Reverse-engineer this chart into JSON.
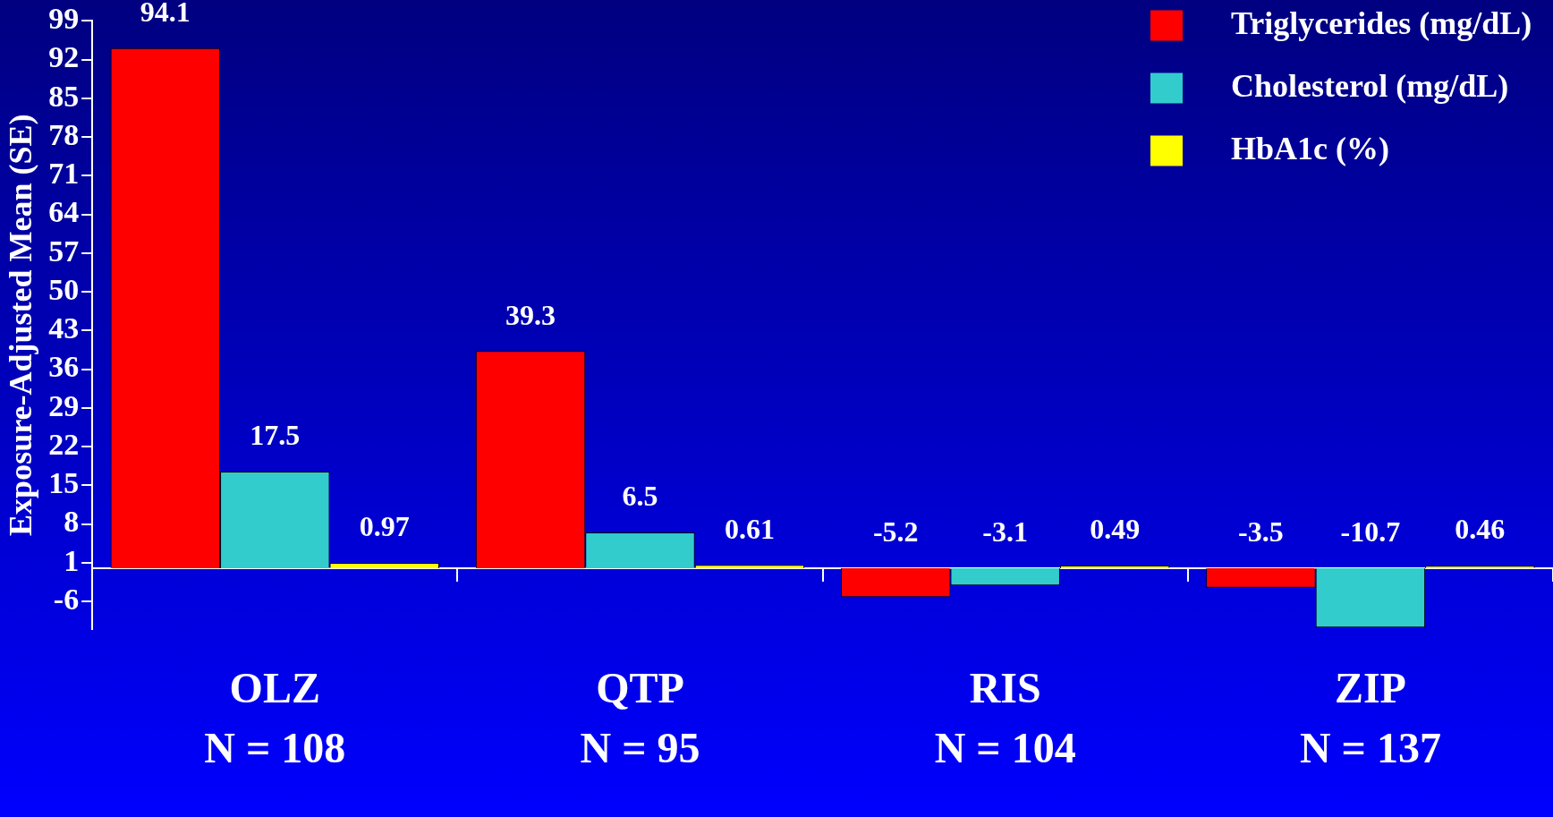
{
  "chart_data": {
    "type": "bar",
    "ylabel": "Exposure-Adjusted Mean (SE)",
    "categories": [
      "OLZ\nN = 108",
      "QTP\nN = 95",
      "RIS\nN = 104",
      "ZIP\nN = 137"
    ],
    "series": [
      {
        "name": "Triglycerides (mg/dL)",
        "color": "#ff0000",
        "values": [
          94.1,
          39.3,
          -5.2,
          -3.5
        ]
      },
      {
        "name": "Cholesterol (mg/dL)",
        "color": "#33cccc",
        "values": [
          17.5,
          6.5,
          -3.1,
          -10.7
        ]
      },
      {
        "name": "HbA1c (%)",
        "color": "#ffff00",
        "values": [
          0.97,
          0.61,
          0.49,
          0.46
        ]
      }
    ],
    "ylim": [
      -11,
      99
    ],
    "yticks": [
      99,
      92,
      85,
      78,
      71,
      64,
      57,
      50,
      43,
      36,
      29,
      22,
      15,
      8,
      1,
      -6
    ],
    "data_labels": true,
    "legend": "top right",
    "grid": false
  }
}
